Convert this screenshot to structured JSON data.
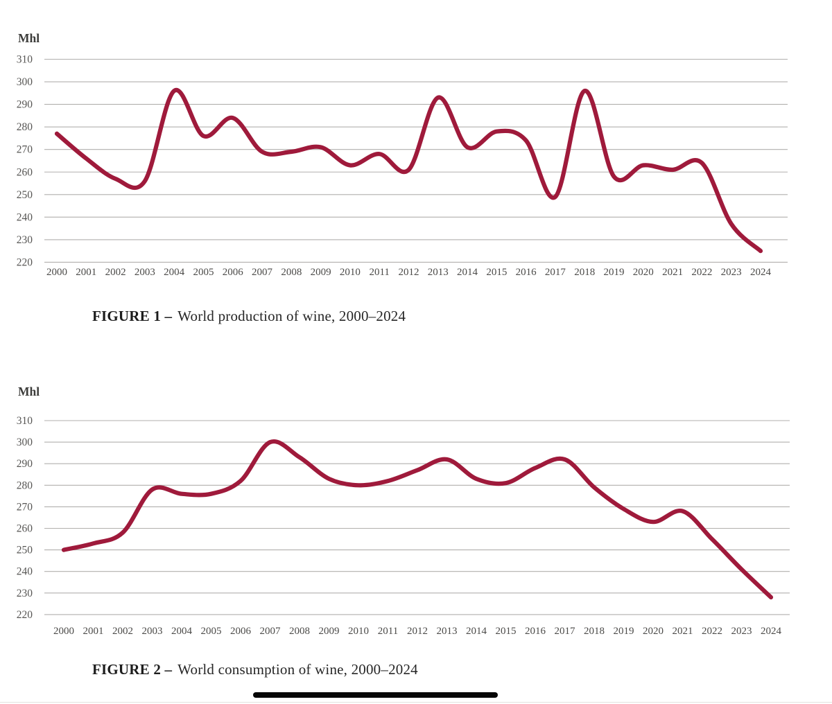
{
  "chart_data": [
    {
      "type": "line",
      "caption_label": "FIGURE 1 –",
      "caption_title": "World production of wine, 2000–2024",
      "unit": "Mhl",
      "years": [
        2000,
        2001,
        2002,
        2003,
        2004,
        2005,
        2006,
        2007,
        2008,
        2009,
        2010,
        2011,
        2012,
        2013,
        2014,
        2015,
        2016,
        2017,
        2018,
        2019,
        2020,
        2021,
        2022,
        2023,
        2024
      ],
      "values": [
        277,
        266,
        257,
        256,
        296,
        276,
        284,
        269,
        269,
        271,
        263,
        268,
        261,
        293,
        271,
        278,
        274,
        249,
        296,
        258,
        263,
        261,
        264,
        237,
        225
      ],
      "ylim": [
        220,
        310
      ],
      "yticks": [
        310,
        300,
        290,
        280,
        270,
        260,
        250,
        240,
        230,
        220
      ],
      "grid": "horizontal",
      "legend": "none",
      "line_color": "#9f1a3b"
    },
    {
      "type": "line",
      "caption_label": "FIGURE 2 –",
      "caption_title": "World consumption of wine, 2000–2024",
      "unit": "Mhl",
      "years": [
        2000,
        2001,
        2002,
        2003,
        2004,
        2005,
        2006,
        2007,
        2008,
        2009,
        2010,
        2011,
        2012,
        2013,
        2014,
        2015,
        2016,
        2017,
        2018,
        2019,
        2020,
        2021,
        2022,
        2023,
        2024
      ],
      "values": [
        250,
        253,
        258,
        278,
        276,
        276,
        282,
        300,
        293,
        283,
        280,
        282,
        287,
        292,
        283,
        281,
        288,
        292,
        279,
        269,
        263,
        268,
        255,
        241,
        228
      ],
      "ylim": [
        220,
        310
      ],
      "yticks": [
        310,
        300,
        290,
        280,
        270,
        260,
        250,
        240,
        230,
        220
      ],
      "grid": "horizontal",
      "legend": "none",
      "line_color": "#9f1a3b"
    }
  ],
  "footer": {
    "handle_bar_color": "#060606",
    "divider_color": "#e3e1df"
  }
}
